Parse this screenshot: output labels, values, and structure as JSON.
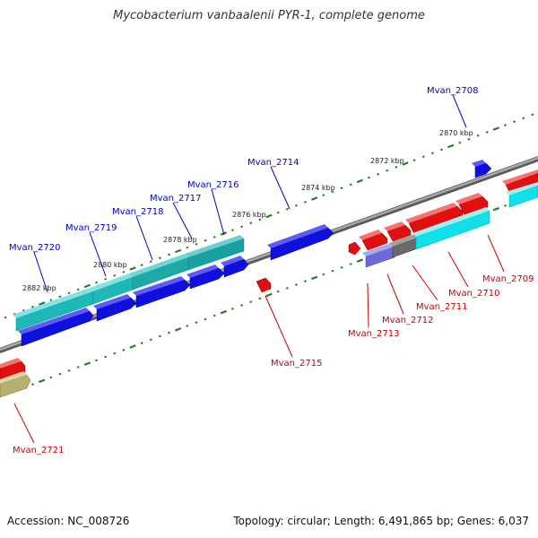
{
  "title": "Mycobacterium vanbaalenii PYR-1, complete genome",
  "footer": {
    "accession": "Accession: NC_008726",
    "summary": "Topology: circular; Length: 6,491,865 bp; Genes: 6,037"
  },
  "colors": {
    "backbone": "#8a8a8a",
    "tick": "#2a7a2a",
    "label_forward": "#0000cc",
    "label_reverse": "#cc0000",
    "blue_gene": "#1010dd",
    "red_gene": "#e01010",
    "cyan_gene": "#20c8c8",
    "teal_gene": "#1aa8a8",
    "gray_gene": "#707070",
    "lavender_gene": "#6a6ad8",
    "olive_gene": "#b8b070"
  },
  "tick_labels": [
    "2870 kbp",
    "2872 kbp",
    "2874 kbp",
    "2876 kbp",
    "2878 kbp",
    "2880 kbp",
    "2882 kbp"
  ],
  "gene_labels": {
    "forward": [
      "Mvan_2708",
      "Mvan_2714",
      "Mvan_2716",
      "Mvan_2717",
      "Mvan_2718",
      "Mvan_2719",
      "Mvan_2720"
    ],
    "reverse": [
      "Mvan_2709",
      "Mvan_2710",
      "Mvan_2711",
      "Mvan_2712",
      "Mvan_2713",
      "Mvan_2715",
      "Mvan_2721"
    ]
  }
}
